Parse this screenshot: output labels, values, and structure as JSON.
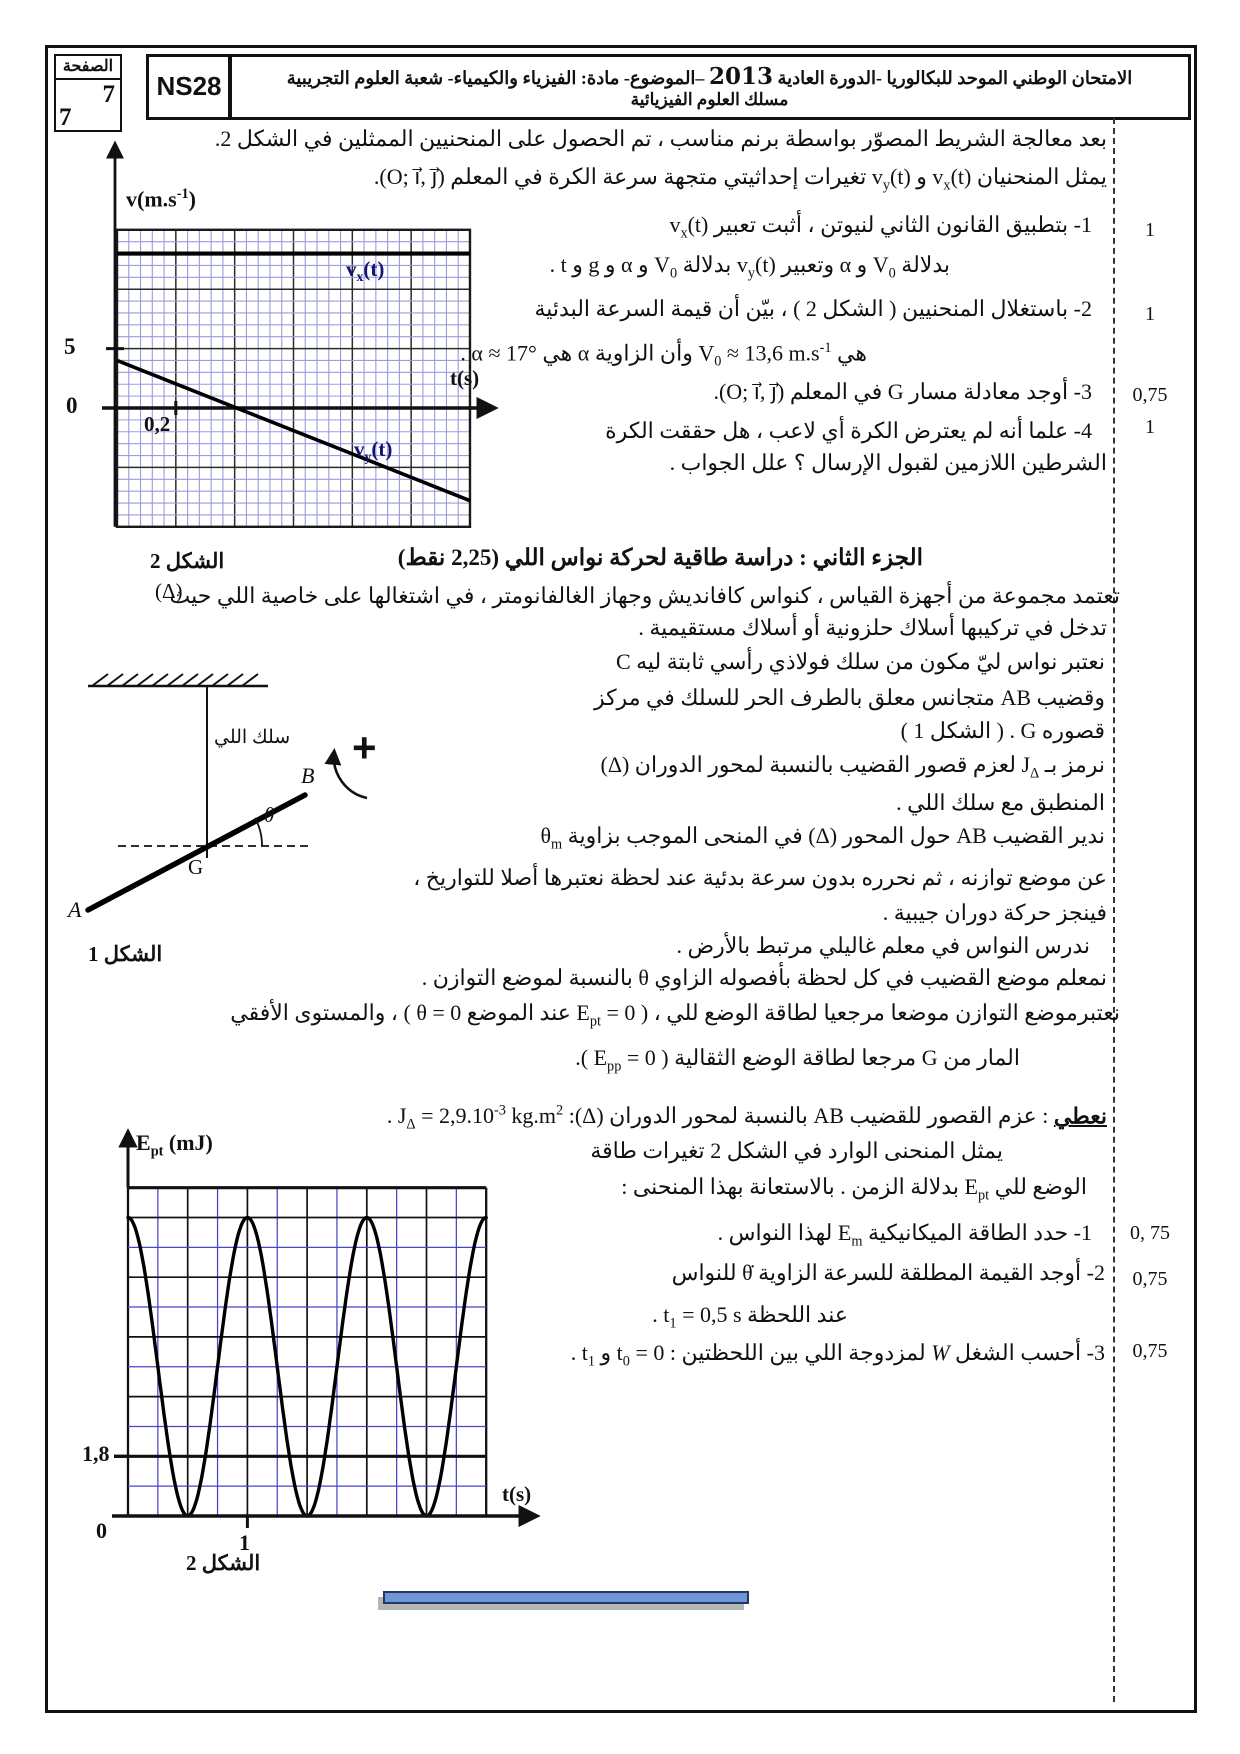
{
  "header": {
    "page_label": "الصفحة",
    "page_current": "7",
    "page_total": "7",
    "exam_code": "NS28",
    "title_before_year": "الامتحان الوطني الموحد للبكالوريا -الدورة العادية",
    "title_year": "2013",
    "title_after_year": "–الموضوع- مادة: الفيزياء والكيمياء- شعبة العلوم التجريبية",
    "title_line2": "مسلك العلوم الفيزيائية"
  },
  "part1": {
    "intro1": "بعد معالجة الشريط  المصوّر بواسطة برنم مناسب ، تم الحصول على المنحنيين  الممثلين في الشكل 2.",
    "intro2": "يمثل المنحنيان  v<sub>x</sub>(t)  و  v<sub>y</sub>(t)  تغيرات إحداثيتي متجهة سرعة الكرة في المعلم  (O; i⃗, j⃗).",
    "q1_l1": "1- بتطبيق القانون الثاني لنيوتن ، أثبت تعبير  v<sub>x</sub>(t)",
    "q1_l2": "بدلالة  V<sub>0</sub>  و  α  وتعبير v<sub>y</sub>(t)  بدلالة  V<sub>0</sub>  و  α  و  g  و  t  .",
    "q2_l1": "2- باستغلال المنحنيين ( الشكل 2 ) ، بيّن أن قيمة السرعة البدئية",
    "q2_l2": "هي  V<sub>0</sub> ≈ 13,6 m.s<sup>-1</sup>  وأن الزاوية  α  هي  α ≈ 17° .",
    "q3": "3- أوجد معادلة مسار  G  في المعلم  (O; i⃗, j⃗).",
    "q4_l1": "4- علما أنه لم يعترض الكرة أي لاعب ، هل حققت الكرة",
    "q4_l2": "الشرطين اللازمين لقبول الإرسال  ؟ علل الجواب ."
  },
  "part2": {
    "heading": "الجزء الثاني : دراسة طاقية لحركة نواس اللي  (2,25 نقط)",
    "para1_l1": "تعتمد مجموعة من أجهزة القياس ، كنواس كافانديش وجهاز الغالفانومتر ، في اشتغالها على خاصية اللي حيث",
    "para1_l2": "تدخل في تركيبها أسلاك حلزونية أو أسلاك مستقيمية .",
    "col_l1": "نعتبر نواس  ليّ مكون من سلك فولاذي رأسي ثابتة ليه  C",
    "col_l2": "وقضيب  AB  متجانس  معلق بالطرف الحر للسلك في مركز",
    "col_l3": "قصوره  G . ( الشكل 1 )",
    "col_l4": "نرمز بـ  J<sub>Δ</sub>  لعزم قصور القضيب بالنسبة لمحور الدوران  (Δ)",
    "col_l5": "المنطبق مع سلك اللي .",
    "col_l6": "ندير القضيب  AB  حول المحور  (Δ)  في المنحى الموجب بزاوية  θ<sub>m</sub>",
    "para2_l1": "عن موضع توازنه ، ثم نحرره بدون سرعة بدئية عند لحظة نعتبرها أصلا للتواريخ ،",
    "para2_l2": "فينجز حركة دوران جيبية .",
    "para2_l3": "ندرس النواس في معلم غاليلي مرتبط بالأرض .",
    "para2_l4": "نمعلم موضع القضيب في كل لحظة بأفصوله الزاوي  θ  بالنسبة لموضع التوازن .",
    "para2_l5": "نعتبرموضع التوازن موضعا مرجعيا لطاقة الوضع للي ، ( E<sub>pt</sub> = 0  عند الموضع  θ = 0 ) ، والمستوى الأفقي",
    "para2_l6": "المار من  G  مرجعا لطاقة الوضع الثقالية ( E<sub>pp</sub> = 0 ).",
    "given_label": "نعطي",
    "given_rest": " : عزم القصور للقضيب  AB  بالنسبة لمحور الدوران  (Δ):  J<sub>Δ</sub> = 2,9.10<sup>-3</sup> kg.m<sup>2</sup>  .",
    "curve_l1": "يمثل  المنحنى الوارد في الشكل 2 تغيرات طاقة",
    "curve_l2": "الوضع للي  E<sub>pt</sub>  بدلالة الزمن . بالاستعانة بهذا المنحنى :",
    "q1": "1- حدد الطاقة الميكانيكية  E<sub>m</sub>  لهذا النواس .",
    "q2_l1": "2- أوجد القيمة المطلقة للسرعة الزاوية  θ̇  للنواس",
    "q2_l2": "عند اللحظة  t<sub>1</sub> = 0,5 s  .",
    "q3": "3-  أحسب الشغل <i>W</i> لمزدوجة اللي بين اللحظتين :  t<sub>0</sub> = 0  و  t<sub>1</sub>  ."
  },
  "margin": {
    "points": [
      "1",
      "1",
      "0,75",
      "1",
      "0, 75",
      "0,75",
      "0,75"
    ]
  },
  "figure1": {
    "caption": "الشكل 1",
    "axis_label": "(Δ)",
    "wire_label": "سلك اللي",
    "point_b": "B",
    "point_a": "A",
    "point_g": "G",
    "angle": "θ",
    "positive_sense": "+"
  },
  "figure2_top": {
    "caption": "الشكل 2",
    "ylabel": "v(m.s<sup>-1</sup>)",
    "xlabel": "t(s)",
    "curve1": "v<sub>x</sub>(t)",
    "curve2": "v<sub>y</sub>(t)",
    "tick_5": "5",
    "tick_0": "0",
    "tick_02": "0,2"
  },
  "figure2_bottom": {
    "caption": "الشكل 2",
    "ylabel": "E<sub>pt</sub> (mJ)",
    "xlabel": "t(s)",
    "tick_18": "1,8",
    "tick_0": "0",
    "tick_1": "1"
  },
  "colors": {
    "grid_minor_blue_top": "#9a9ade",
    "grid_minor_blue_bottom": "#4646c8",
    "curve_black": "#000000",
    "curve_label_navy": "#13136e",
    "decor_bar_fill": "#6e96d2",
    "decor_bar_border": "#203864"
  },
  "chart_data": [
    {
      "type": "line",
      "title": "الشكل 2 : منحنيا إحداثيتي متجهة سرعة الكرة",
      "xlabel": "t(s)",
      "ylabel": "v(m.s-1)",
      "x_range": [
        0,
        1.2
      ],
      "y_range": [
        -10,
        15
      ],
      "x_tick_interval": 0.2,
      "y_tick_interval": 5,
      "visible_tick_labels": {
        "x": [
          "0,2"
        ],
        "y": [
          "0",
          "5"
        ]
      },
      "grid": true,
      "legend_position": "on-curve",
      "series": [
        {
          "name": "vx(t)",
          "shape": "constant",
          "points": [
            [
              0,
              13
            ],
            [
              1.2,
              13
            ]
          ]
        },
        {
          "name": "vy(t)",
          "shape": "linear",
          "points": [
            [
              0,
              4
            ],
            [
              1.2,
              -7.8
            ]
          ],
          "slope_m_per_s2": -9.8,
          "zero_crossing_s": 0.41
        }
      ]
    },
    {
      "type": "line",
      "title": "الشكل 2 : تغيرات طاقة الوضع للي Ept بدلالة الزمن",
      "xlabel": "t(s)",
      "ylabel": "Ept (mJ)",
      "x_range": [
        0,
        3
      ],
      "y_range": [
        0,
        9.9
      ],
      "x_tick_interval": 0.5,
      "y_tick_interval": 1.8,
      "visible_tick_labels": {
        "x": [
          "1"
        ],
        "y": [
          "1,8"
        ]
      },
      "grid": true,
      "series": [
        {
          "name": "Ept",
          "shape": "cos2",
          "Em_mJ": 9,
          "T_s": 1,
          "maxima_t_s": [
            0,
            1,
            2,
            3
          ],
          "minima_t_s": [
            0.5,
            1.5,
            2.5
          ]
        }
      ]
    }
  ]
}
